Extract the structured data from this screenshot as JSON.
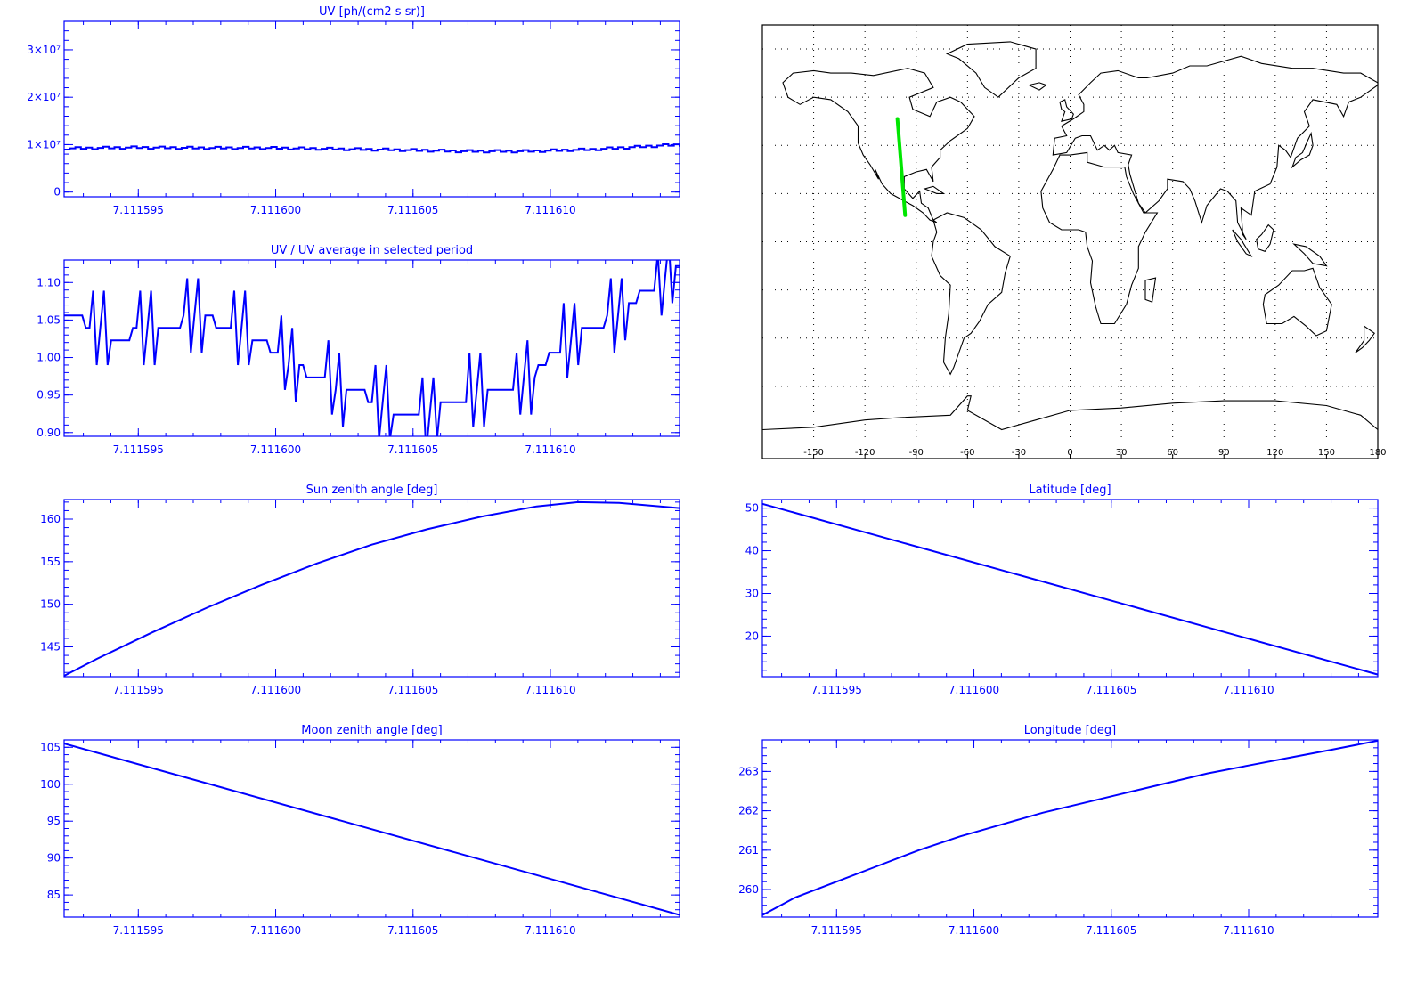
{
  "colors": {
    "plot": "#0000ff",
    "track": "#00e600",
    "coast": "#000000",
    "background": "#ffffff"
  },
  "chart_data": [
    {
      "id": "uv",
      "type": "line",
      "step": true,
      "title": "UV [ph/(cm2 s sr)]",
      "xlim": [
        7.1115923,
        7.1116147
      ],
      "ylim": [
        -0.1,
        3.6
      ],
      "xticks": [
        7.111595,
        7.1116,
        7.111605,
        7.11161
      ],
      "xticklabels": [
        "7.111595",
        "7.111600",
        "7.111605",
        "7.111610"
      ],
      "yticks": [
        0,
        1,
        2,
        3
      ],
      "yticklabels": [
        "0",
        "1×10⁷",
        "2×10⁷",
        "3×10⁷"
      ],
      "yscale_note": "values in units of 10^7",
      "x": [
        7.1115923,
        7.1115947,
        7.1115971,
        7.1115995,
        7.1116019,
        7.1116043,
        7.1116067,
        7.1116091,
        7.1116115,
        7.1116139,
        7.1116147
      ],
      "y": [
        0.92,
        0.94,
        0.93,
        0.93,
        0.91,
        0.89,
        0.86,
        0.86,
        0.9,
        0.98,
        1.0
      ]
    },
    {
      "id": "ratio",
      "type": "line",
      "title": "UV / UV average in selected period",
      "xlim": [
        7.1115923,
        7.1116147
      ],
      "ylim": [
        0.895,
        1.13
      ],
      "xticks": [
        7.111595,
        7.1116,
        7.111605,
        7.11161
      ],
      "xticklabels": [
        "7.111595",
        "7.111600",
        "7.111605",
        "7.111610"
      ],
      "yticks": [
        0.9,
        0.95,
        1.0,
        1.05,
        1.1
      ],
      "yticklabels": [
        "0.90",
        "0.95",
        "1.00",
        "1.05",
        "1.10"
      ],
      "x": [
        7.1115923,
        7.1115934,
        7.1115942,
        7.1115952,
        7.1115962,
        7.1115972,
        7.1115982,
        7.1115992,
        7.1116002,
        7.1116012,
        7.1116022,
        7.1116032,
        7.1116042,
        7.1116052,
        7.1116062,
        7.1116072,
        7.1116082,
        7.1116092,
        7.1116102,
        7.1116112,
        7.1116122,
        7.1116132,
        7.1116142,
        7.1116147
      ],
      "y": [
        1.06,
        1.04,
        1.02,
        1.04,
        1.04,
        1.06,
        1.04,
        1.03,
        1.0,
        0.98,
        0.96,
        0.95,
        0.93,
        0.92,
        0.94,
        0.95,
        0.95,
        0.97,
        1.01,
        1.04,
        1.05,
        1.08,
        1.1,
        1.12
      ]
    },
    {
      "id": "sun",
      "type": "line",
      "title": "Sun zenith angle [deg]",
      "xlim": [
        7.1115923,
        7.1116147
      ],
      "ylim": [
        141.5,
        162.3
      ],
      "xticks": [
        7.111595,
        7.1116,
        7.111605,
        7.11161
      ],
      "xticklabels": [
        "7.111595",
        "7.111600",
        "7.111605",
        "7.111610"
      ],
      "yticks": [
        145,
        150,
        155,
        160
      ],
      "yticklabels": [
        "145",
        "150",
        "155",
        "160"
      ],
      "x": [
        7.1115923,
        7.1115935,
        7.1115955,
        7.1115975,
        7.1115995,
        7.1116015,
        7.1116035,
        7.1116055,
        7.1116075,
        7.1116095,
        7.111611,
        7.1116125,
        7.1116147
      ],
      "y": [
        141.6,
        143.6,
        146.7,
        149.6,
        152.3,
        154.8,
        157.0,
        158.8,
        160.3,
        161.5,
        162.0,
        161.9,
        161.3
      ]
    },
    {
      "id": "lat",
      "type": "line",
      "title": "Latitude [deg]",
      "xlim": [
        7.1115923,
        7.1116147
      ],
      "ylim": [
        10.5,
        52
      ],
      "xticks": [
        7.111595,
        7.1116,
        7.111605,
        7.11161
      ],
      "xticklabels": [
        "7.111595",
        "7.111600",
        "7.111605",
        "7.111610"
      ],
      "yticks": [
        20,
        30,
        40,
        50
      ],
      "yticklabels": [
        "20",
        "30",
        "40",
        "50"
      ],
      "x": [
        7.1115923,
        7.1116147
      ],
      "y": [
        51.0,
        11.0
      ]
    },
    {
      "id": "moon",
      "type": "line",
      "title": "Moon zenith angle [deg]",
      "xlim": [
        7.1115923,
        7.1116147
      ],
      "ylim": [
        82,
        106
      ],
      "xticks": [
        7.111595,
        7.1116,
        7.111605,
        7.11161
      ],
      "xticklabels": [
        "7.111595",
        "7.111600",
        "7.111605",
        "7.111610"
      ],
      "yticks": [
        85,
        90,
        95,
        100,
        105
      ],
      "yticklabels": [
        "85",
        "90",
        "95",
        "100",
        "105"
      ],
      "x": [
        7.1115923,
        7.1116147
      ],
      "y": [
        105.5,
        82.3
      ]
    },
    {
      "id": "lon",
      "type": "line",
      "title": "Longitude [deg]",
      "xlim": [
        7.1115923,
        7.1116147
      ],
      "ylim": [
        259.3,
        263.8
      ],
      "xticks": [
        7.111595,
        7.1116,
        7.111605,
        7.11161
      ],
      "xticklabels": [
        "7.111595",
        "7.111600",
        "7.111605",
        "7.111610"
      ],
      "yticks": [
        260,
        261,
        262,
        263
      ],
      "yticklabels": [
        "260",
        "261",
        "262",
        "263"
      ],
      "x": [
        7.1115923,
        7.1115935,
        7.111595,
        7.1115965,
        7.111598,
        7.1115995,
        7.111601,
        7.1116025,
        7.111604,
        7.1116055,
        7.111607,
        7.1116085,
        7.11161,
        7.1116115,
        7.111613,
        7.1116147
      ],
      "y": [
        259.35,
        259.8,
        260.2,
        260.6,
        261.0,
        261.35,
        261.65,
        261.95,
        262.2,
        262.45,
        262.7,
        262.95,
        263.15,
        263.35,
        263.55,
        263.78
      ]
    },
    {
      "id": "map",
      "type": "map",
      "xlim": [
        -180,
        180
      ],
      "ylim": [
        -90,
        90
      ],
      "xticks": [
        -150,
        -120,
        -90,
        -60,
        -30,
        0,
        30,
        60,
        90,
        120,
        150,
        180
      ],
      "xticklabels": [
        "-150",
        "-120",
        "-90",
        "-60",
        "-30",
        "0",
        "30",
        "60",
        "90",
        "120",
        "150",
        "180"
      ],
      "grid": true,
      "track": {
        "lon": [
          -101,
          -96.5
        ],
        "lat": [
          51,
          11
        ]
      }
    }
  ]
}
